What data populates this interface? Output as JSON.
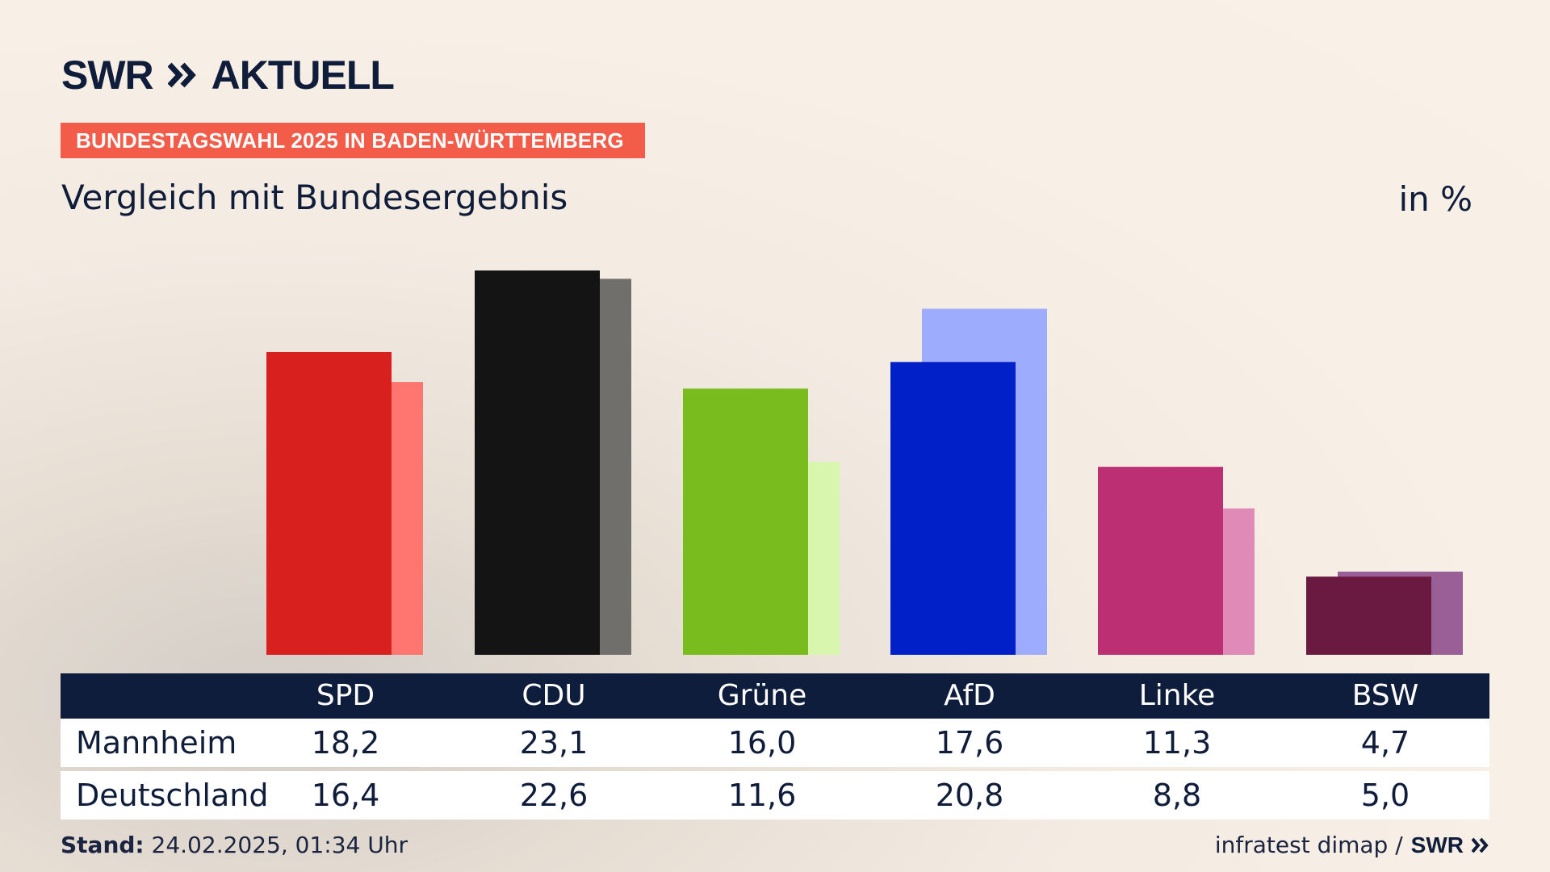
{
  "header": {
    "logo_left": "SWR",
    "logo_right": "AKTUELL",
    "badge": "BUNDESTAGSWAHL 2025 IN BADEN-WÜRTTEMBERG",
    "subtitle": "Vergleich mit Bundesergebnis",
    "unit": "in %"
  },
  "table": {
    "columns": [
      "SPD",
      "CDU",
      "Grüne",
      "AfD",
      "Linke",
      "BSW"
    ],
    "rows": [
      {
        "label": "Mannheim",
        "values": [
          "18,2",
          "23,1",
          "16,0",
          "17,6",
          "11,3",
          "4,7"
        ]
      },
      {
        "label": "Deutschland",
        "values": [
          "16,4",
          "22,6",
          "11,6",
          "20,8",
          "8,8",
          "5,0"
        ]
      }
    ]
  },
  "footer": {
    "stand_label": "Stand:",
    "stand_value": "24.02.2025, 01:34 Uhr",
    "source": "infratest dimap /",
    "source_logo": "SWR"
  },
  "colors": {
    "primary": [
      "#d8201f",
      "#141414",
      "#79bc1e",
      "#0120c7",
      "#bd2f73",
      "#6a1a40"
    ],
    "secondary": [
      "#ff7570",
      "#716f6c",
      "#d9f6ae",
      "#9dacfd",
      "#df8ab7",
      "#9b5f97"
    ],
    "badge": "#f25c48",
    "header_bar": "#0d1d3b"
  },
  "chart_data": {
    "type": "bar",
    "categories": [
      "SPD",
      "CDU",
      "Grüne",
      "AfD",
      "Linke",
      "BSW"
    ],
    "series": [
      {
        "name": "Mannheim",
        "values": [
          18.2,
          23.1,
          16.0,
          17.6,
          11.3,
          4.7
        ]
      },
      {
        "name": "Deutschland",
        "values": [
          16.4,
          22.6,
          11.6,
          20.8,
          8.8,
          5.0
        ]
      }
    ],
    "title": "Vergleich mit Bundesergebnis",
    "ylabel": "in %",
    "ylim": [
      0,
      23.1
    ],
    "grid": false
  }
}
